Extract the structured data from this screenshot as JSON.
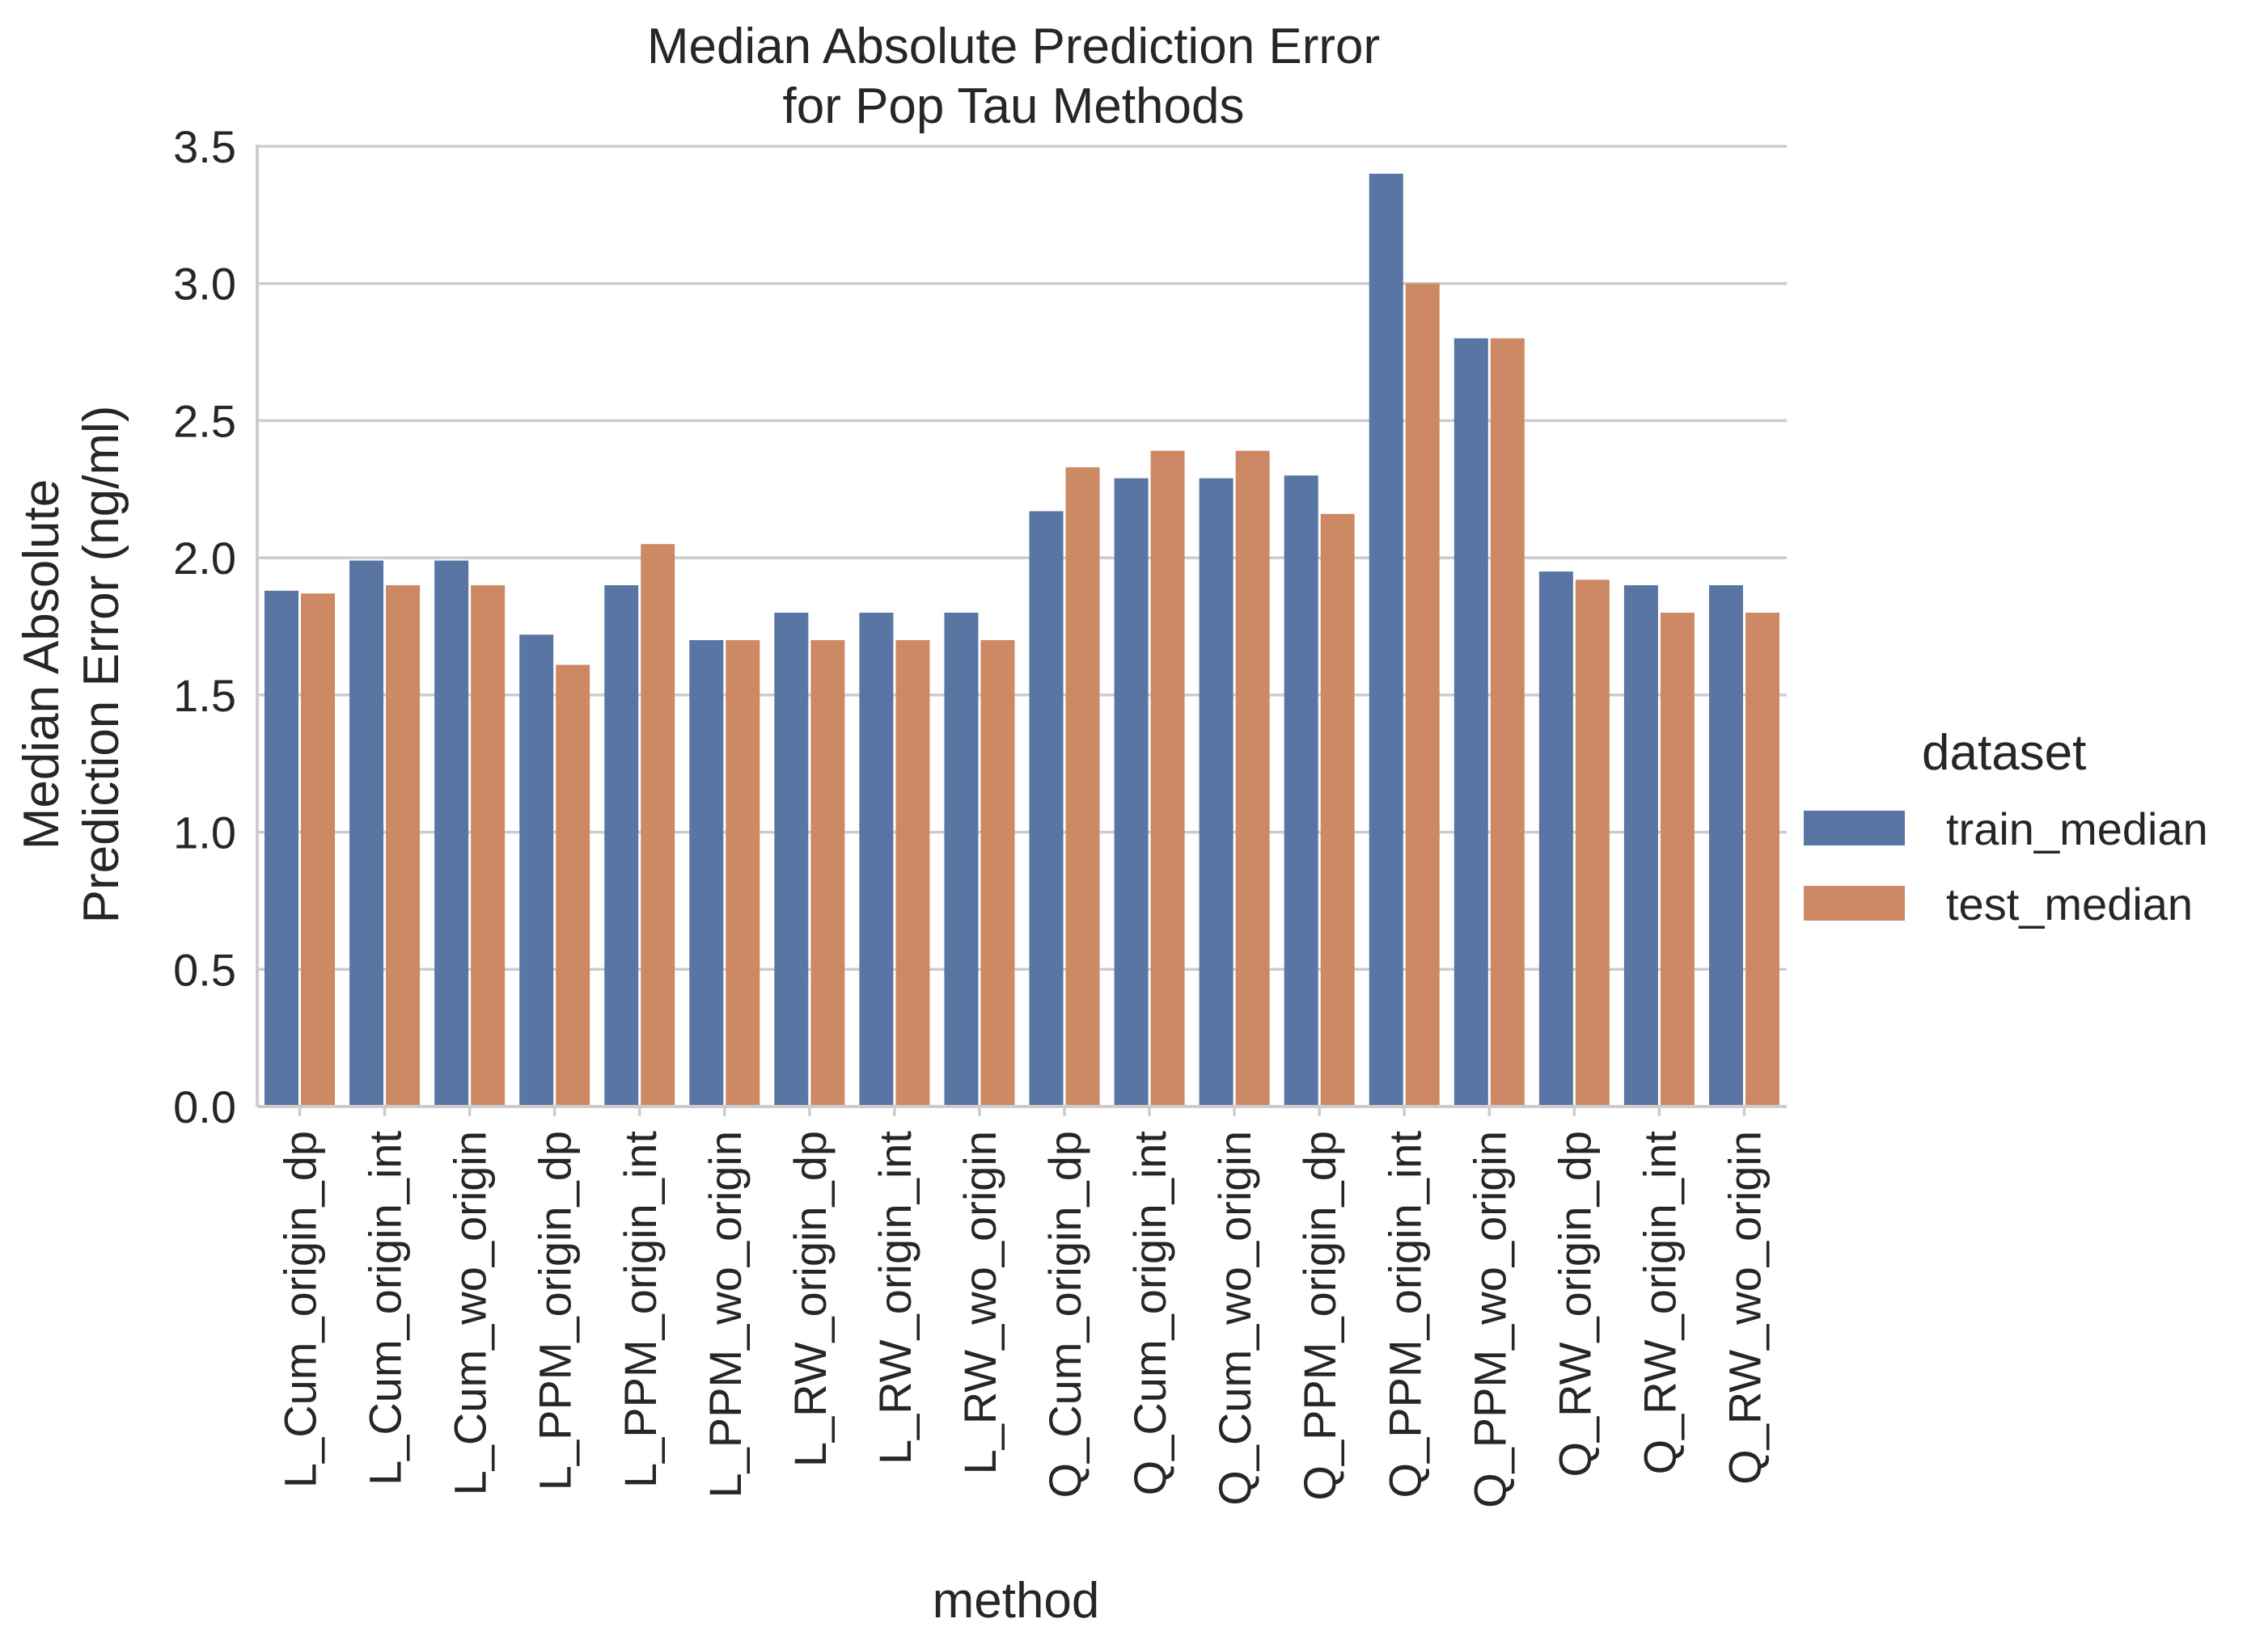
{
  "chart_data": {
    "type": "bar",
    "title": "Median Absolute Prediction Error",
    "subtitle": "for Pop Tau Methods",
    "xlabel": "method",
    "ylabel_line1": "Median Absolute",
    "ylabel_line2": "Prediction Error (ng/ml)",
    "ylim": [
      0,
      3.5
    ],
    "yticks": [
      "0.0",
      "0.5",
      "1.0",
      "1.5",
      "2.0",
      "2.5",
      "3.0",
      "3.5"
    ],
    "grid": true,
    "legend_title": "dataset",
    "legend_position": "right",
    "categories": [
      "L_Cum_origin_dp",
      "L_Cum_origin_int",
      "L_Cum_wo_origin",
      "L_PPM_origin_dp",
      "L_PPM_origin_int",
      "L_PPM_wo_origin",
      "L_RW_origin_dp",
      "L_RW_origin_int",
      "L_RW_wo_origin",
      "Q_Cum_origin_dp",
      "Q_Cum_origin_int",
      "Q_Cum_wo_origin",
      "Q_PPM_origin_dp",
      "Q_PPM_origin_int",
      "Q_PPM_wo_origin",
      "Q_RW_origin_dp",
      "Q_RW_origin_int",
      "Q_RW_wo_origin"
    ],
    "series": [
      {
        "name": "train_median",
        "color": "#5875a4",
        "values": [
          1.88,
          1.99,
          1.99,
          1.72,
          1.9,
          1.7,
          1.8,
          1.8,
          1.8,
          2.17,
          2.29,
          2.29,
          2.3,
          3.4,
          2.8,
          1.95,
          1.9,
          1.9
        ]
      },
      {
        "name": "test_median",
        "color": "#cc8963",
        "values": [
          1.87,
          1.9,
          1.9,
          1.61,
          2.05,
          1.7,
          1.7,
          1.7,
          1.7,
          2.33,
          2.39,
          2.39,
          2.16,
          3.0,
          2.8,
          1.92,
          1.8,
          1.8
        ]
      }
    ]
  }
}
